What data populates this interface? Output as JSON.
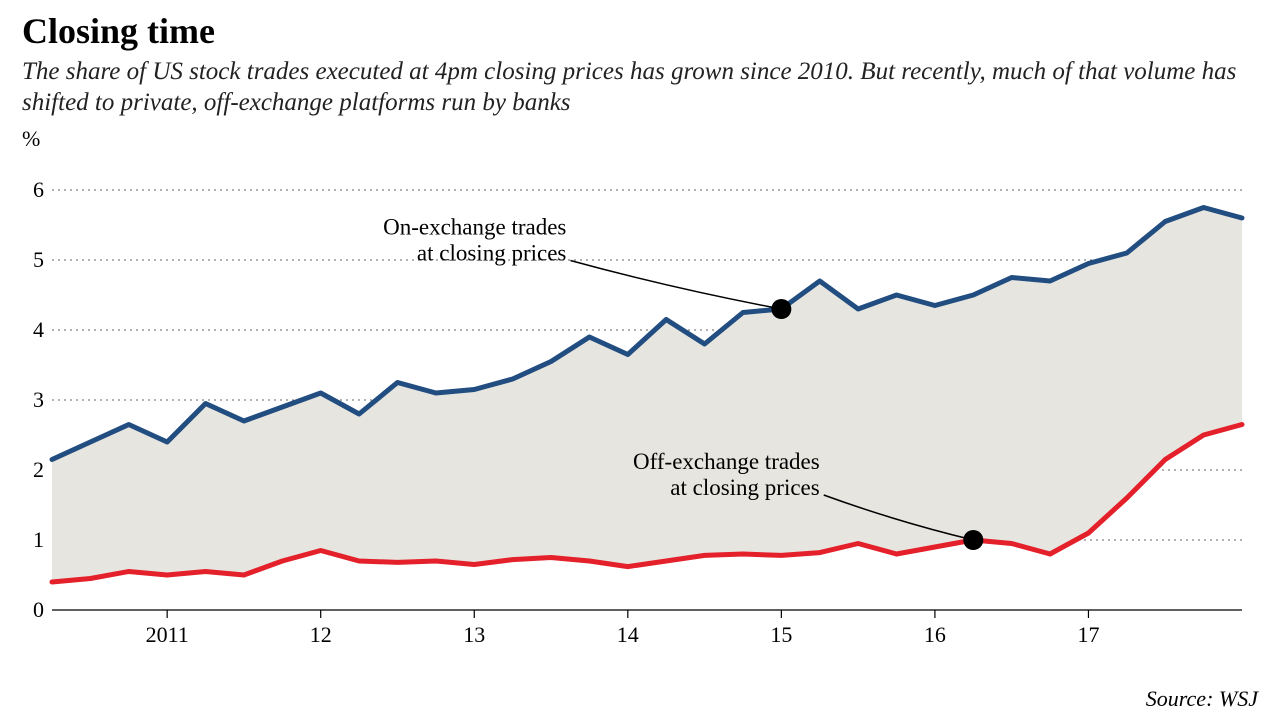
{
  "title": "Closing time",
  "subtitle": "The share of US stock trades executed at 4pm closing prices has grown since 2010. But recently, much of that volume has shifted to private, off-exchange platforms run by banks",
  "unit_label": "%",
  "source": "Source: WSJ",
  "chart": {
    "type": "line-area-between",
    "background_color": "#ffffff",
    "area_fill_color": "#e7e5df",
    "grid_color": "#000000",
    "grid_dash": "2 4",
    "grid_opacity": 0.6,
    "baseline_color": "#000000",
    "label_fontsize": 22,
    "xlim": [
      2010.25,
      2018.0
    ],
    "ylim": [
      0,
      6.4
    ],
    "yticks": [
      0,
      1,
      2,
      3,
      4,
      5,
      6
    ],
    "xticks": [
      2011,
      2012,
      2013,
      2014,
      2015,
      2016,
      2017
    ],
    "xtick_labels": [
      "2011",
      "12",
      "13",
      "14",
      "15",
      "16",
      "17"
    ],
    "series": {
      "on_exchange": {
        "label_line1": "On-exchange trades",
        "label_line2": "at closing prices",
        "color": "#214d80",
        "line_width": 5,
        "x": [
          2010.25,
          2010.5,
          2010.75,
          2011.0,
          2011.25,
          2011.5,
          2011.75,
          2012.0,
          2012.25,
          2012.5,
          2012.75,
          2013.0,
          2013.25,
          2013.5,
          2013.75,
          2014.0,
          2014.25,
          2014.5,
          2014.75,
          2015.0,
          2015.25,
          2015.5,
          2015.75,
          2016.0,
          2016.25,
          2016.5,
          2016.75,
          2017.0,
          2017.25,
          2017.5,
          2017.75,
          2018.0
        ],
        "y": [
          2.15,
          2.4,
          2.65,
          2.4,
          2.95,
          2.7,
          2.9,
          3.1,
          2.8,
          3.25,
          3.1,
          3.15,
          3.3,
          3.55,
          3.9,
          3.65,
          4.15,
          3.8,
          4.25,
          4.3,
          4.7,
          4.3,
          4.5,
          4.35,
          4.5,
          4.75,
          4.7,
          4.95,
          5.1,
          5.55,
          5.75,
          5.6
        ],
        "annotation_point": {
          "x": 2015.0,
          "y": 4.3
        },
        "annotation_text_anchor": {
          "x": 2013.6,
          "y": 5.05
        }
      },
      "off_exchange": {
        "label_line1": "Off-exchange trades",
        "label_line2": "at closing prices",
        "color": "#e4202b",
        "line_width": 5,
        "x": [
          2010.25,
          2010.5,
          2010.75,
          2011.0,
          2011.25,
          2011.5,
          2011.75,
          2012.0,
          2012.25,
          2012.5,
          2012.75,
          2013.0,
          2013.25,
          2013.5,
          2013.75,
          2014.0,
          2014.25,
          2014.5,
          2014.75,
          2015.0,
          2015.25,
          2015.5,
          2015.75,
          2016.0,
          2016.25,
          2016.5,
          2016.75,
          2017.0,
          2017.25,
          2017.5,
          2017.75,
          2018.0
        ],
        "y": [
          0.4,
          0.45,
          0.55,
          0.5,
          0.55,
          0.5,
          0.7,
          0.85,
          0.7,
          0.68,
          0.7,
          0.65,
          0.72,
          0.75,
          0.7,
          0.62,
          0.7,
          0.78,
          0.8,
          0.78,
          0.82,
          0.95,
          0.8,
          0.9,
          1.0,
          0.95,
          0.8,
          1.1,
          1.6,
          2.15,
          2.5,
          2.65
        ],
        "annotation_point": {
          "x": 2016.25,
          "y": 1.0
        },
        "annotation_text_anchor": {
          "x": 2015.25,
          "y": 1.7
        }
      }
    },
    "annotation_marker": {
      "fill": "#000000",
      "radius": 10
    },
    "annotation_leader": {
      "stroke": "#000000",
      "width": 1.5
    }
  }
}
